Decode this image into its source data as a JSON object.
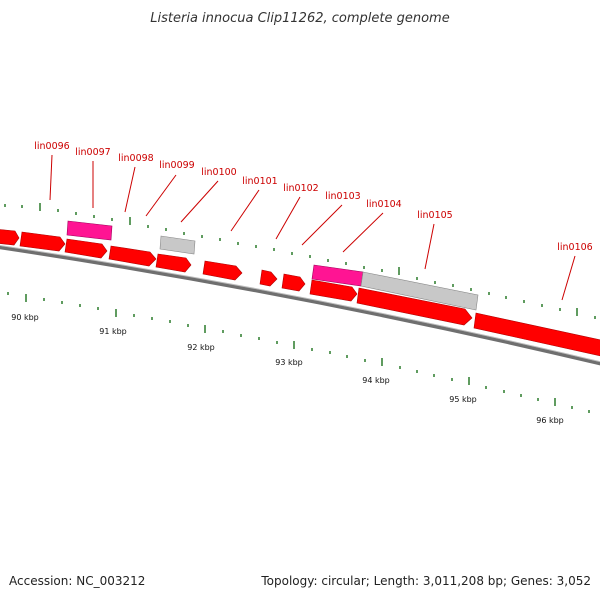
{
  "title": "Listeria innocua Clip11262, complete genome",
  "accession": "Accession: NC_003212",
  "summary": "Topology: circular; Length: 3,011,208 bp; Genes: 3,052",
  "colors": {
    "cds": "#ff0000",
    "rna": "#ff1493",
    "pseudo": "#c0c0c0",
    "backbone": "#777777",
    "ticks": "#2a7a2a",
    "gene_label": "#cc0000"
  },
  "scale_labels": [
    "90 kbp",
    "91 kbp",
    "92 kbp",
    "93 kbp",
    "94 kbp",
    "95 kbp",
    "96 kbp"
  ],
  "gene_labels": [
    "lin0096",
    "lin0097",
    "lin0098",
    "lin0099",
    "lin0100",
    "lin0101",
    "lin0102",
    "lin0103",
    "lin0104",
    "lin0105",
    "lin0106"
  ]
}
